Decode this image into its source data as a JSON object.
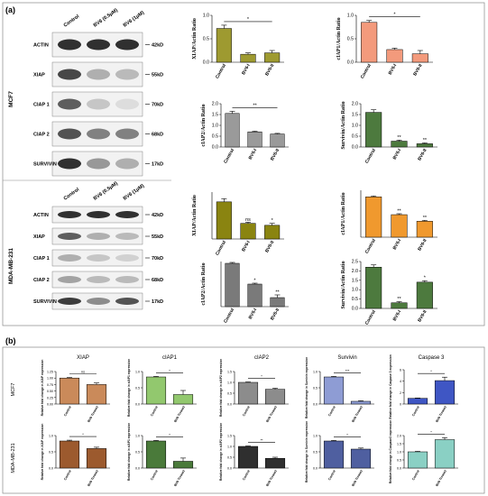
{
  "figure": {
    "panel_a_label": "(a)",
    "panel_b_label": "(b)"
  },
  "blots": [
    {
      "cell_line": "MCF7",
      "lanes": [
        "Control",
        "BV6 (0.5μM)",
        "BV6 (1μM)"
      ],
      "rows": [
        {
          "protein": "ACTIN",
          "size": "42kD",
          "intensity": [
            0.9,
            0.9,
            0.9
          ]
        },
        {
          "protein": "XIAP",
          "size": "55kD",
          "intensity": [
            0.8,
            0.35,
            0.3
          ]
        },
        {
          "protein": "CIAP 1",
          "size": "70kD",
          "intensity": [
            0.7,
            0.25,
            0.15
          ]
        },
        {
          "protein": "CIAP 2",
          "size": "68kD",
          "intensity": [
            0.75,
            0.55,
            0.55
          ]
        },
        {
          "protein": "SURVIVIN",
          "size": "17kD",
          "intensity": [
            0.9,
            0.45,
            0.35
          ]
        }
      ]
    },
    {
      "cell_line": "MDA-MB-231",
      "lanes": [
        "Control",
        "BV6 (0.5μM)",
        "BV6 (1μM)"
      ],
      "rows": [
        {
          "protein": "ACTIN",
          "size": "42kD",
          "intensity": [
            0.9,
            0.9,
            0.9
          ]
        },
        {
          "protein": "XIAP",
          "size": "55kD",
          "intensity": [
            0.7,
            0.35,
            0.3
          ]
        },
        {
          "protein": "CIAP 1",
          "size": "70kD",
          "intensity": [
            0.35,
            0.25,
            0.2
          ]
        },
        {
          "protein": "CIAP 2",
          "size": "68kD",
          "intensity": [
            0.4,
            0.3,
            0.3
          ]
        },
        {
          "protein": "SURVIVIN",
          "size": "17kD",
          "intensity": [
            0.85,
            0.5,
            0.75
          ]
        }
      ]
    }
  ],
  "chart_data": [
    {
      "id": "a1",
      "type": "bar",
      "categories": [
        "Control",
        "BV6-I",
        "BV6-II"
      ],
      "values": [
        0.72,
        0.17,
        0.2
      ],
      "errors": [
        0.07,
        0.03,
        0.05
      ],
      "ylabel": "XIAP/Actin Ratio",
      "ylim": [
        0,
        1
      ],
      "yticks": [
        "0.0",
        "0.5",
        "1.0"
      ],
      "color": "#9e9a30",
      "stars": [
        "",
        "",
        ""
      ],
      "bracket": "*"
    },
    {
      "id": "a2",
      "type": "bar",
      "categories": [
        "Control",
        "BV6-I",
        "BV6-II"
      ],
      "values": [
        0.85,
        0.27,
        0.18
      ],
      "errors": [
        0.04,
        0.03,
        0.07
      ],
      "ylabel": "cIAP1/Actin Ratio",
      "ylim": [
        0,
        1
      ],
      "yticks": [
        "0.0",
        "0.5",
        "1.0"
      ],
      "color": "#f39a7c",
      "stars": [
        "",
        "",
        ""
      ],
      "bracket": "*"
    },
    {
      "id": "a3",
      "type": "bar",
      "categories": [
        "Control",
        "BV6-I",
        "BV6-II"
      ],
      "values": [
        1.55,
        0.7,
        0.6
      ],
      "errors": [
        0.1,
        0.03,
        0.03
      ],
      "ylabel": "cIAP2/Actin Ratio",
      "ylim": [
        0,
        2
      ],
      "yticks": [
        "0.0",
        "0.5",
        "1.0",
        "1.5",
        "2.0"
      ],
      "color": "#9a9a9a",
      "stars": [
        "",
        "",
        ""
      ],
      "bracket": "**"
    },
    {
      "id": "a4",
      "type": "bar",
      "categories": [
        "Control",
        "BV6-I",
        "BV6-II"
      ],
      "values": [
        1.6,
        0.27,
        0.15
      ],
      "errors": [
        0.12,
        0.05,
        0.04
      ],
      "ylabel": "Survivin/Actin Ratio",
      "ylim": [
        0,
        2
      ],
      "yticks": [
        "0.0",
        "0.5",
        "1.0",
        "1.5",
        "2.0"
      ],
      "color": "#4d7a3e",
      "stars": [
        "",
        "**",
        "**"
      ],
      "bracket": ""
    },
    {
      "id": "a5",
      "type": "bar",
      "categories": [
        "Control",
        "BV6-I",
        "BV6-II"
      ],
      "values": [
        0.95,
        0.4,
        0.35
      ],
      "errors": [
        0.08,
        0.03,
        0.05
      ],
      "ylabel": "XIAP/Actin Ratio",
      "ylim": [
        0,
        1.2
      ],
      "yticks": [],
      "color": "#8a8410",
      "stars": [
        "",
        "ns",
        "*"
      ],
      "bracket": ""
    },
    {
      "id": "a6",
      "type": "bar",
      "categories": [
        "Control",
        "BV6-I",
        "BV6-II"
      ],
      "values": [
        0.43,
        0.24,
        0.17
      ],
      "errors": [
        0.01,
        0.01,
        0.01
      ],
      "ylabel": "cIAP1/Actin Ratio",
      "ylim": [
        0,
        0.5
      ],
      "yticks": [],
      "color": "#f0992e",
      "stars": [
        "",
        "**",
        "**"
      ],
      "bracket": ""
    },
    {
      "id": "a7",
      "type": "bar",
      "categories": [
        "Control",
        "BV6-I",
        "BV6-II"
      ],
      "values": [
        0.48,
        0.25,
        0.1
      ],
      "errors": [
        0.01,
        0.01,
        0.03
      ],
      "ylabel": "cIAP2/Actin Ratio",
      "ylim": [
        0,
        0.5
      ],
      "yticks": [],
      "color": "#7a7a7a",
      "stars": [
        "",
        "*",
        "**"
      ],
      "bracket": ""
    },
    {
      "id": "a8",
      "type": "bar",
      "categories": [
        "Control",
        "BV6-I",
        "BV6-II"
      ],
      "values": [
        2.2,
        0.3,
        1.4
      ],
      "errors": [
        0.12,
        0.06,
        0.08
      ],
      "ylabel": "Survivin/Actin Ratio",
      "ylim": [
        0,
        2.5
      ],
      "yticks": [
        "0.0",
        "0.5",
        "1.0",
        "1.5",
        "2.0",
        "2.5"
      ],
      "color": "#4d7a3e",
      "stars": [
        "",
        "**",
        "*"
      ],
      "bracket": ""
    },
    {
      "id": "b1",
      "type": "bar",
      "categories": [
        "Control",
        "BV6 Treated"
      ],
      "values": [
        1.0,
        0.75
      ],
      "errors": [
        0.02,
        0.06
      ],
      "ylabel": "Relative fold change in XIAP expression",
      "ylim": [
        0,
        1.25
      ],
      "yticks": [
        "0.00",
        "0.25",
        "0.50",
        "0.75",
        "1.00",
        "1.25"
      ],
      "color": "#ca8a5a",
      "stars": [
        "",
        ""
      ],
      "bracket": "ns"
    },
    {
      "id": "b2",
      "type": "bar",
      "categories": [
        "Control",
        "BV6 Treated"
      ],
      "values": [
        1.0,
        0.35
      ],
      "errors": [
        0.02,
        0.15
      ],
      "ylabel": "Relative fold change in cIAP1 expression",
      "ylim": [
        0,
        1.2
      ],
      "yticks": [
        "0.0",
        "0.5",
        "1.0"
      ],
      "color": "#92c86e",
      "stars": [
        "",
        ""
      ],
      "bracket": "*"
    },
    {
      "id": "b3",
      "type": "bar",
      "categories": [
        "Control",
        "BV6 Treated"
      ],
      "values": [
        1.0,
        0.68
      ],
      "errors": [
        0.02,
        0.05
      ],
      "ylabel": "Relative fold change in cIAP2 expression",
      "ylim": [
        0,
        1.5
      ],
      "yticks": [
        "0.0",
        "0.5",
        "1.0",
        "1.5"
      ],
      "color": "#8c8c8c",
      "stars": [
        "",
        ""
      ],
      "bracket": "*"
    },
    {
      "id": "b4",
      "type": "bar",
      "categories": [
        "Control",
        "BV6 Treated"
      ],
      "values": [
        1.0,
        0.1
      ],
      "errors": [
        0.02,
        0.02
      ],
      "ylabel": "Relative fold change in Survivin expression",
      "ylim": [
        0,
        1.2
      ],
      "yticks": [
        "0.0",
        "0.5",
        "1.0"
      ],
      "color": "#8e9cd4",
      "stars": [
        "",
        ""
      ],
      "bracket": "***"
    },
    {
      "id": "b5",
      "type": "bar",
      "categories": [
        "Control",
        "BV6 Treated"
      ],
      "values": [
        1.0,
        4.1
      ],
      "errors": [
        0.05,
        0.6
      ],
      "ylabel": "Relative fold change in Caspase 3 expression",
      "ylim": [
        0,
        6
      ],
      "yticks": [
        "0",
        "2",
        "4",
        "6"
      ],
      "color": "#3f56c4",
      "stars": [
        "",
        ""
      ],
      "bracket": "*"
    },
    {
      "id": "b6",
      "type": "bar",
      "categories": [
        "Control",
        "BV6 Treated"
      ],
      "values": [
        1.0,
        0.72
      ],
      "errors": [
        0.03,
        0.05
      ],
      "ylabel": "Relative fold change in XIAP expression",
      "ylim": [
        0,
        1.2
      ],
      "yticks": [
        "0.0",
        "0.5",
        "1.0"
      ],
      "color": "#9c5a2e",
      "stars": [
        "",
        ""
      ],
      "bracket": "*"
    },
    {
      "id": "b7",
      "type": "bar",
      "categories": [
        "Control",
        "BV6 Treated"
      ],
      "values": [
        1.0,
        0.25
      ],
      "errors": [
        0.02,
        0.12
      ],
      "ylabel": "Relative fold change in cIAP1 expression",
      "ylim": [
        0,
        1.2
      ],
      "yticks": [
        "0.0",
        "0.5",
        "1.0"
      ],
      "color": "#4a7a3a",
      "stars": [
        "",
        ""
      ],
      "bracket": "*"
    },
    {
      "id": "b8",
      "type": "bar",
      "categories": [
        "Control",
        "BV6 Treated"
      ],
      "values": [
        1.0,
        0.45
      ],
      "errors": [
        0.02,
        0.05
      ],
      "ylabel": "Relative fold change in cIAP2 expression",
      "ylim": [
        0,
        1.5
      ],
      "yticks": [
        "0.0",
        "0.5",
        "1.0",
        "1.5"
      ],
      "color": "#2f2f2f",
      "stars": [
        "",
        ""
      ],
      "bracket": "**"
    },
    {
      "id": "b9",
      "type": "bar",
      "categories": [
        "Control",
        "BV6 Treated"
      ],
      "values": [
        1.0,
        0.7
      ],
      "errors": [
        0.02,
        0.04
      ],
      "ylabel": "Relative fold change in Survivin expression",
      "ylim": [
        0,
        1.2
      ],
      "yticks": [
        "0.0",
        "0.5",
        "1.0"
      ],
      "color": "#4f5fa0",
      "stars": [
        "",
        ""
      ],
      "bracket": "*"
    },
    {
      "id": "b10",
      "type": "bar",
      "categories": [
        "Control",
        "BV6 Treated"
      ],
      "values": [
        1.0,
        1.75
      ],
      "errors": [
        0.03,
        0.12
      ],
      "ylabel": "Relative fold change in Caspase3 expression",
      "ylim": [
        0,
        2.0
      ],
      "yticks": [
        "0.0",
        "0.5",
        "1.0",
        "1.5",
        "2.0"
      ],
      "color": "#8ad0c4",
      "stars": [
        "",
        ""
      ],
      "bracket": "*"
    }
  ],
  "panel_b": {
    "columns": [
      "XIAP",
      "cIAP1",
      "cIAP2",
      "Survivin",
      "Caspase 3"
    ],
    "row_labels": [
      "MCF7",
      "MDA-MB-231"
    ]
  }
}
